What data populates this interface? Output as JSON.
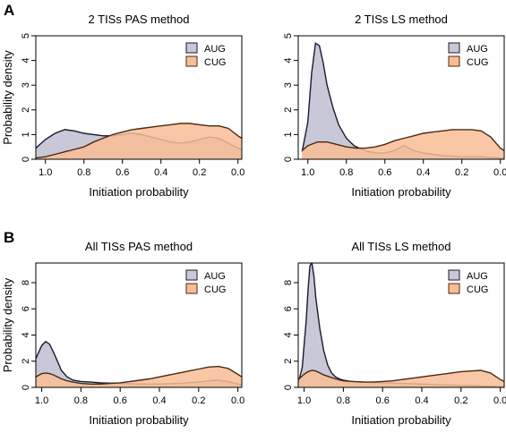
{
  "figure": {
    "panel_letters": [
      "A",
      "B"
    ],
    "colors": {
      "AUG": "#c8c8d8",
      "CUG": "#f9bd96",
      "AUG_line": "#1a1a2e",
      "CUG_line": "#4a2a10"
    }
  },
  "chart_data": [
    {
      "type": "area",
      "title": "2 TISs PAS method",
      "xlabel": "Initiation probability",
      "ylabel": "Probability density",
      "xlim": [
        1.05,
        -0.02
      ],
      "x_reversed": true,
      "ylim": [
        0,
        5
      ],
      "xticks": [
        1.0,
        0.8,
        0.6,
        0.4,
        0.2,
        0.0
      ],
      "xtick_labels": [
        "1.0",
        "0.8",
        "0.6",
        "0.4",
        "0.2",
        "0.0"
      ],
      "yticks": [
        0,
        1,
        2,
        3,
        4,
        5
      ],
      "ytick_labels": [
        "0",
        "1",
        "2",
        "3",
        "4",
        "5"
      ],
      "legend_position": "top-right",
      "series": [
        {
          "name": "AUG",
          "x": [
            1.05,
            1.0,
            0.95,
            0.9,
            0.85,
            0.8,
            0.75,
            0.7,
            0.65,
            0.6,
            0.55,
            0.5,
            0.45,
            0.4,
            0.35,
            0.3,
            0.25,
            0.2,
            0.15,
            0.1,
            0.05,
            0.0,
            -0.02
          ],
          "y": [
            0.45,
            0.8,
            1.05,
            1.2,
            1.15,
            1.05,
            1.0,
            0.95,
            0.95,
            1.0,
            1.05,
            1.0,
            0.9,
            0.8,
            0.7,
            0.65,
            0.7,
            0.8,
            0.9,
            0.85,
            0.65,
            0.45,
            0.4
          ]
        },
        {
          "name": "CUG",
          "x": [
            1.05,
            1.0,
            0.95,
            0.9,
            0.85,
            0.8,
            0.75,
            0.7,
            0.65,
            0.6,
            0.55,
            0.5,
            0.45,
            0.4,
            0.35,
            0.3,
            0.25,
            0.2,
            0.15,
            0.1,
            0.05,
            0.0,
            -0.02
          ],
          "y": [
            0.05,
            0.1,
            0.2,
            0.3,
            0.4,
            0.5,
            0.7,
            0.85,
            1.0,
            1.1,
            1.2,
            1.25,
            1.3,
            1.35,
            1.4,
            1.45,
            1.45,
            1.4,
            1.35,
            1.35,
            1.25,
            0.95,
            0.85
          ]
        }
      ]
    },
    {
      "type": "area",
      "title": "2 TISs LS method",
      "xlabel": "Initiation probability",
      "ylabel": "",
      "xlim": [
        1.05,
        -0.02
      ],
      "x_reversed": true,
      "ylim": [
        0,
        5
      ],
      "xticks": [
        1.0,
        0.8,
        0.6,
        0.4,
        0.2,
        0.0
      ],
      "xtick_labels": [
        "1.0",
        "0.8",
        "0.6",
        "0.4",
        "0.2",
        "0.0"
      ],
      "yticks": [
        0,
        1,
        2,
        3,
        4,
        5
      ],
      "ytick_labels": [
        "0",
        "1",
        "2",
        "3",
        "4",
        "5"
      ],
      "legend_position": "top-right",
      "series": [
        {
          "name": "AUG",
          "x": [
            1.03,
            1.0,
            0.98,
            0.96,
            0.94,
            0.92,
            0.9,
            0.87,
            0.84,
            0.8,
            0.76,
            0.72,
            0.68,
            0.64,
            0.6,
            0.55,
            0.5,
            0.45,
            0.4,
            0.3,
            0.2,
            0.1,
            0.0,
            -0.02
          ],
          "y": [
            0.3,
            1.5,
            3.5,
            4.7,
            4.6,
            3.9,
            3.0,
            2.1,
            1.4,
            0.85,
            0.55,
            0.4,
            0.3,
            0.25,
            0.25,
            0.35,
            0.55,
            0.35,
            0.25,
            0.15,
            0.1,
            0.1,
            0.05,
            0.05
          ]
        },
        {
          "name": "CUG",
          "x": [
            1.03,
            1.0,
            0.95,
            0.9,
            0.85,
            0.8,
            0.75,
            0.7,
            0.65,
            0.6,
            0.55,
            0.5,
            0.45,
            0.4,
            0.35,
            0.3,
            0.25,
            0.2,
            0.15,
            0.1,
            0.05,
            0.0,
            -0.02
          ],
          "y": [
            0.35,
            0.55,
            0.7,
            0.7,
            0.6,
            0.5,
            0.45,
            0.45,
            0.5,
            0.6,
            0.75,
            0.85,
            0.95,
            1.05,
            1.1,
            1.15,
            1.2,
            1.2,
            1.2,
            1.15,
            0.9,
            0.45,
            0.35
          ]
        }
      ]
    },
    {
      "type": "area",
      "title": "All TISs PAS method",
      "xlabel": "Initiation probability",
      "ylabel": "Probability density",
      "xlim": [
        1.03,
        -0.02
      ],
      "x_reversed": true,
      "ylim": [
        0,
        9.5
      ],
      "xticks": [
        1.0,
        0.8,
        0.6,
        0.4,
        0.2,
        0.0
      ],
      "xtick_labels": [
        "1.0",
        "0.8",
        "0.6",
        "0.4",
        "0.2",
        "0.0"
      ],
      "yticks": [
        0,
        2,
        4,
        6,
        8
      ],
      "ytick_labels": [
        "0",
        "2",
        "4",
        "6",
        "8"
      ],
      "legend_position": "top-right",
      "series": [
        {
          "name": "AUG",
          "x": [
            1.03,
            1.0,
            0.98,
            0.96,
            0.94,
            0.92,
            0.9,
            0.87,
            0.84,
            0.8,
            0.75,
            0.7,
            0.6,
            0.5,
            0.4,
            0.3,
            0.2,
            0.15,
            0.1,
            0.05,
            0.0,
            -0.02
          ],
          "y": [
            2.2,
            3.2,
            3.5,
            3.3,
            2.7,
            2.0,
            1.3,
            0.8,
            0.55,
            0.45,
            0.4,
            0.35,
            0.3,
            0.25,
            0.25,
            0.3,
            0.4,
            0.5,
            0.55,
            0.45,
            0.25,
            0.2
          ]
        },
        {
          "name": "CUG",
          "x": [
            1.03,
            1.0,
            0.98,
            0.96,
            0.94,
            0.92,
            0.9,
            0.87,
            0.84,
            0.8,
            0.75,
            0.7,
            0.65,
            0.6,
            0.55,
            0.5,
            0.45,
            0.4,
            0.35,
            0.3,
            0.25,
            0.2,
            0.15,
            0.1,
            0.05,
            0.0,
            -0.02
          ],
          "y": [
            0.8,
            1.05,
            1.1,
            1.05,
            0.95,
            0.8,
            0.65,
            0.5,
            0.4,
            0.3,
            0.25,
            0.25,
            0.3,
            0.35,
            0.45,
            0.55,
            0.65,
            0.8,
            0.95,
            1.1,
            1.25,
            1.4,
            1.55,
            1.6,
            1.45,
            1.0,
            0.8
          ]
        }
      ]
    },
    {
      "type": "area",
      "title": "All TISs LS method",
      "xlabel": "Initiation probability",
      "ylabel": "",
      "xlim": [
        1.03,
        -0.02
      ],
      "x_reversed": true,
      "ylim": [
        0,
        9.5
      ],
      "xticks": [
        1.0,
        0.8,
        0.6,
        0.4,
        0.2,
        0.0
      ],
      "xtick_labels": [
        "1.0",
        "0.8",
        "0.6",
        "0.4",
        "0.2",
        "0.0"
      ],
      "yticks": [
        0,
        2,
        4,
        6,
        8
      ],
      "ytick_labels": [
        "0",
        "2",
        "4",
        "6",
        "8"
      ],
      "legend_position": "top-right",
      "series": [
        {
          "name": "AUG",
          "x": [
            1.03,
            1.01,
            0.99,
            0.98,
            0.97,
            0.96,
            0.95,
            0.94,
            0.92,
            0.9,
            0.88,
            0.86,
            0.84,
            0.82,
            0.8,
            0.76,
            0.7,
            0.6,
            0.5,
            0.4,
            0.3,
            0.2,
            0.1,
            0.0,
            -0.02
          ],
          "y": [
            0.3,
            1.5,
            5.0,
            7.5,
            9.3,
            9.5,
            8.5,
            6.8,
            4.5,
            2.8,
            1.7,
            1.1,
            0.8,
            0.65,
            0.55,
            0.45,
            0.4,
            0.35,
            0.3,
            0.25,
            0.2,
            0.15,
            0.1,
            0.05,
            0.05
          ]
        },
        {
          "name": "CUG",
          "x": [
            1.03,
            1.0,
            0.98,
            0.96,
            0.94,
            0.92,
            0.9,
            0.87,
            0.84,
            0.8,
            0.75,
            0.7,
            0.65,
            0.6,
            0.55,
            0.5,
            0.45,
            0.4,
            0.35,
            0.3,
            0.25,
            0.2,
            0.15,
            0.1,
            0.05,
            0.0,
            -0.02
          ],
          "y": [
            0.6,
            1.0,
            1.2,
            1.3,
            1.25,
            1.1,
            0.95,
            0.8,
            0.65,
            0.5,
            0.45,
            0.4,
            0.4,
            0.45,
            0.5,
            0.6,
            0.7,
            0.8,
            0.9,
            1.0,
            1.1,
            1.2,
            1.25,
            1.3,
            1.1,
            0.6,
            0.45
          ]
        }
      ]
    }
  ]
}
